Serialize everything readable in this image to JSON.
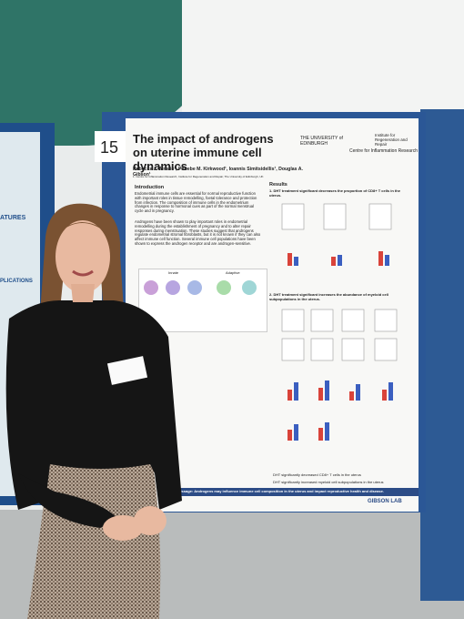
{
  "board_number": "15",
  "poster": {
    "title": "The impact of androgens on uterine immune cell dynamics",
    "logos": [
      "THE UNIVERSITY of EDINBURGH",
      "Institute for Regeneration and Repair"
    ],
    "centre": "Centre for Inflammation Research",
    "authors": "Rebecca J. Ainslie¹, Phoebe M. Kirkwood¹, Ioannis Simitsidellis¹, Douglas A. Gibson¹",
    "affiliation": "1. Centre for Inflammation Research, Institute for Regeneration and Repair, The University of Edinburgh, UK",
    "introduction": {
      "heading": "Introduction",
      "paragraphs": [
        "Endometrial immune cells are essential for normal reproductive function with important roles in tissue remodelling, foetal tolerance and protection from infection. The composition of immune cells in the endometrium changes in response to hormonal cues as part of the normal menstrual cycle and in pregnancy.",
        "Androgens have been shown to play important roles in endometrial remodelling during the establishment of pregnancy and to alter repair responses during menstruation. These studies suggest that androgens regulate endometrial stromal fibroblasts, but it is not known if they can also affect immune cell function. Several immune cell populations have been shown to express the androgen receptor and are androgen-sensitive."
      ]
    },
    "figure_labels": [
      "Innate",
      "Adaptive"
    ],
    "results": {
      "heading": "Results",
      "findings": [
        "1. DHT treatment significant decreases the proportion of CD8+ T cells in the uterus.",
        "2. DHT treatment significant increases the abundance of myeloid cell subpopulations in the uterus."
      ]
    },
    "conclusions": [
      "DHT significantly decreased CD8+ T cells in the uterus",
      "DHT significantly increased myeloid cell subpopulations in the uterus"
    ],
    "message": "Message: Androgens may influence immune cell composition in the uterus and impact reproductive health and disease.",
    "lab": "GIBSON LAB"
  },
  "left_poster": {
    "fragments": [
      "ATURES",
      "PLICATIONS"
    ]
  }
}
